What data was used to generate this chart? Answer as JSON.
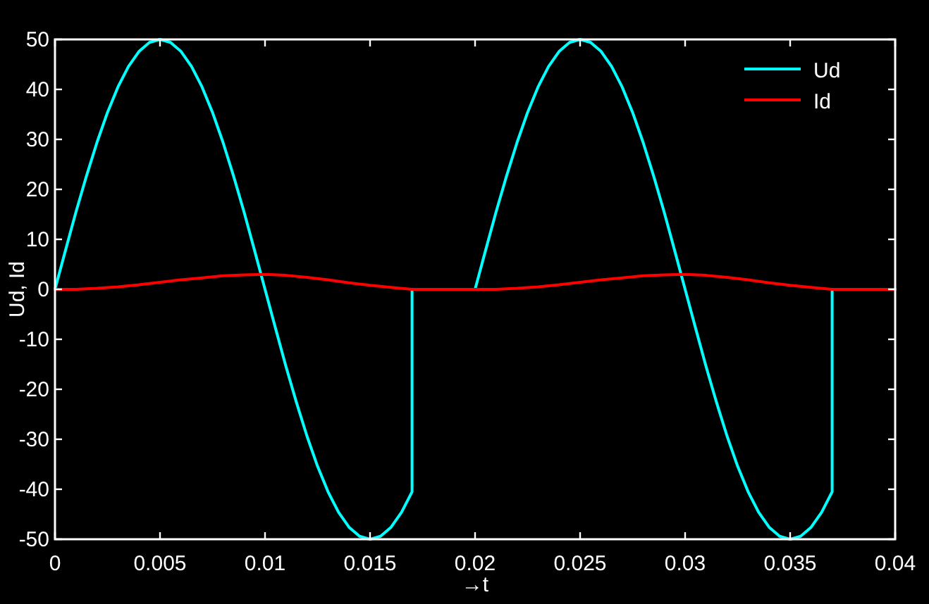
{
  "chart_data": {
    "type": "line",
    "xlabel": "→t",
    "ylabel": "Ud, Id",
    "xlim": [
      0,
      0.04
    ],
    "ylim": [
      -50,
      50
    ],
    "xticks": [
      0,
      0.005,
      0.01,
      0.015,
      0.02,
      0.025,
      0.03,
      0.035,
      0.04
    ],
    "yticks": [
      -50,
      -40,
      -30,
      -20,
      -10,
      0,
      10,
      20,
      30,
      40,
      50
    ],
    "legend": "top right",
    "series": [
      {
        "name": "Ud",
        "color": "#00ffff",
        "x": [
          0,
          0.0005,
          0.001,
          0.0015,
          0.002,
          0.0025,
          0.003,
          0.0035,
          0.004,
          0.0045,
          0.005,
          0.0055,
          0.006,
          0.0065,
          0.007,
          0.0075,
          0.008,
          0.0085,
          0.009,
          0.0095,
          0.01,
          0.0105,
          0.011,
          0.0115,
          0.012,
          0.0125,
          0.013,
          0.0135,
          0.014,
          0.0145,
          0.015,
          0.0155,
          0.016,
          0.0165,
          0.017,
          0.017,
          0.02,
          0.0205,
          0.021,
          0.0215,
          0.022,
          0.0225,
          0.023,
          0.0235,
          0.024,
          0.0245,
          0.025,
          0.0255,
          0.026,
          0.0265,
          0.027,
          0.0275,
          0.028,
          0.0285,
          0.029,
          0.0295,
          0.03,
          0.0305,
          0.031,
          0.0315,
          0.032,
          0.0325,
          0.033,
          0.0335,
          0.034,
          0.0345,
          0.035,
          0.0355,
          0.036,
          0.0365,
          0.037,
          0.037,
          0.04
        ],
        "values": [
          0,
          7.8,
          15.5,
          22.7,
          29.4,
          35.4,
          40.5,
          44.6,
          47.6,
          49.4,
          50,
          49.4,
          47.6,
          44.6,
          40.5,
          35.4,
          29.4,
          22.7,
          15.5,
          7.8,
          0,
          -7.8,
          -15.5,
          -22.7,
          -29.4,
          -35.4,
          -40.5,
          -44.6,
          -47.6,
          -49.4,
          -50,
          -49.4,
          -47.6,
          -44.6,
          -40.5,
          0,
          0,
          7.8,
          15.5,
          22.7,
          29.4,
          35.4,
          40.5,
          44.6,
          47.6,
          49.4,
          50,
          49.4,
          47.6,
          44.6,
          40.5,
          35.4,
          29.4,
          22.7,
          15.5,
          7.8,
          0,
          -7.8,
          -15.5,
          -22.7,
          -29.4,
          -35.4,
          -40.5,
          -44.6,
          -47.6,
          -49.4,
          -50,
          -49.4,
          -47.6,
          -44.6,
          -40.5,
          0,
          0
        ]
      },
      {
        "name": "Id",
        "color": "#ff0000",
        "x": [
          0,
          0.001,
          0.002,
          0.003,
          0.004,
          0.005,
          0.006,
          0.007,
          0.008,
          0.009,
          0.01,
          0.011,
          0.012,
          0.013,
          0.014,
          0.015,
          0.016,
          0.017,
          0.02,
          0.021,
          0.022,
          0.023,
          0.024,
          0.025,
          0.026,
          0.027,
          0.028,
          0.029,
          0.03,
          0.031,
          0.032,
          0.033,
          0.034,
          0.035,
          0.036,
          0.037,
          0.04
        ],
        "values": [
          0,
          0,
          0.2,
          0.5,
          0.9,
          1.4,
          1.9,
          2.3,
          2.7,
          2.9,
          3,
          2.8,
          2.4,
          1.9,
          1.3,
          0.8,
          0.4,
          0,
          0,
          0,
          0.2,
          0.5,
          0.9,
          1.4,
          1.9,
          2.3,
          2.7,
          2.9,
          3,
          2.8,
          2.4,
          1.9,
          1.3,
          0.8,
          0.4,
          0,
          0
        ]
      }
    ]
  }
}
